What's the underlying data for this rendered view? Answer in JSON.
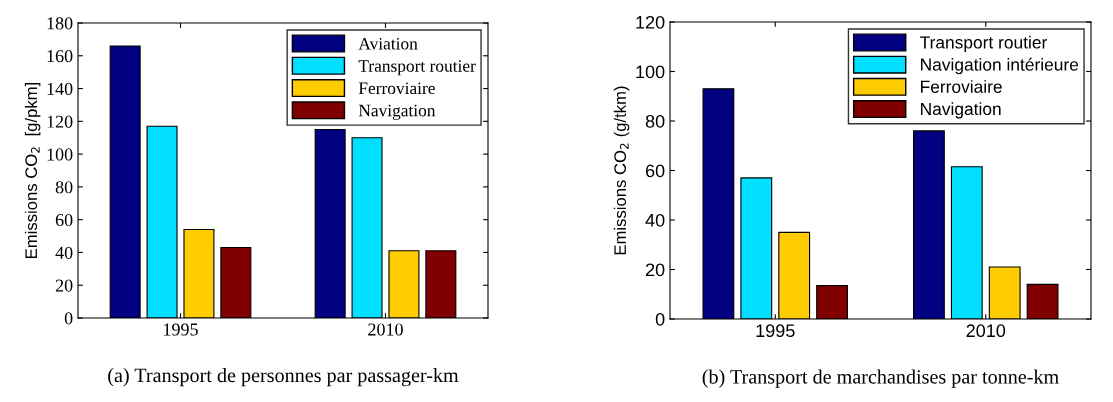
{
  "chart_data": [
    {
      "type": "bar",
      "title": "(a) Transport de personnes par passager-km",
      "ylabel": "Emissions CO$_{2}$  [g/pkm]",
      "categories": [
        "1995",
        "2010"
      ],
      "ylim": [
        0,
        180
      ],
      "yticks": [
        0,
        20,
        40,
        60,
        80,
        100,
        120,
        140,
        160,
        180
      ],
      "legend": "top right",
      "grid": false,
      "series": [
        {
          "name": "Aviation",
          "color": "#000080",
          "values": [
            166,
            115
          ]
        },
        {
          "name": "Transport routier",
          "color": "#00dfff",
          "values": [
            117,
            110
          ]
        },
        {
          "name": "Ferroviaire",
          "color": "#ffcc00",
          "values": [
            54,
            41
          ]
        },
        {
          "name": "Navigation",
          "color": "#800000",
          "values": [
            43,
            41
          ]
        }
      ]
    },
    {
      "type": "bar",
      "title": "(b) Transport de marchandises par tonne-km",
      "ylabel": "Emissions CO$_{2}$ (g/tkm)",
      "categories": [
        "1995",
        "2010"
      ],
      "ylim": [
        0,
        120
      ],
      "yticks": [
        0,
        20,
        40,
        60,
        80,
        100,
        120
      ],
      "legend": "top right",
      "grid": false,
      "series": [
        {
          "name": "Transport routier",
          "color": "#000080",
          "values": [
            93,
            76
          ]
        },
        {
          "name": "Navigation intérieure",
          "color": "#00dfff",
          "values": [
            57,
            61.5
          ]
        },
        {
          "name": "Ferroviaire",
          "color": "#ffcc00",
          "values": [
            35,
            21
          ]
        },
        {
          "name": "Navigation",
          "color": "#800000",
          "values": [
            13.5,
            14
          ]
        }
      ]
    }
  ]
}
